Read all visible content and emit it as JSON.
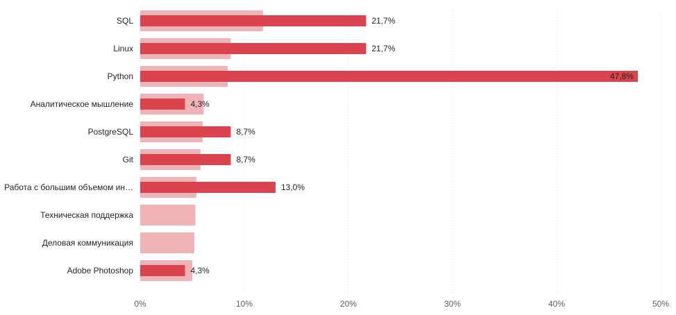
{
  "chart_data": {
    "type": "bar",
    "orientation": "horizontal",
    "categories": [
      "SQL",
      "Linux",
      "Python",
      "Аналитическое мышление",
      "PostgreSQL",
      "Git",
      "Работа с большим объемом ин…",
      "Техническая поддержка",
      "Деловая коммуникация",
      "Adobe Photoshop"
    ],
    "series": [
      {
        "name": "background",
        "color": "#efb3b8",
        "values": [
          11.8,
          8.7,
          8.4,
          6.1,
          6.0,
          5.8,
          5.4,
          5.3,
          5.2,
          5.0
        ]
      },
      {
        "name": "foreground",
        "color": "#d9444f",
        "values": [
          21.7,
          21.7,
          47.8,
          4.3,
          8.7,
          8.7,
          13.0,
          0,
          0,
          4.3
        ]
      }
    ],
    "data_labels": [
      "21,7%",
      "21,7%",
      "47,8%",
      "4,3%",
      "8,7%",
      "8,7%",
      "13,0%",
      "",
      "",
      "4,3%"
    ],
    "x_ticks": [
      0,
      10,
      20,
      30,
      40,
      50
    ],
    "x_tick_labels": [
      "0%",
      "10%",
      "20%",
      "30%",
      "40%",
      "50%"
    ],
    "xlim": [
      0,
      50
    ],
    "grid": true,
    "title": "",
    "xlabel": "",
    "ylabel": ""
  }
}
